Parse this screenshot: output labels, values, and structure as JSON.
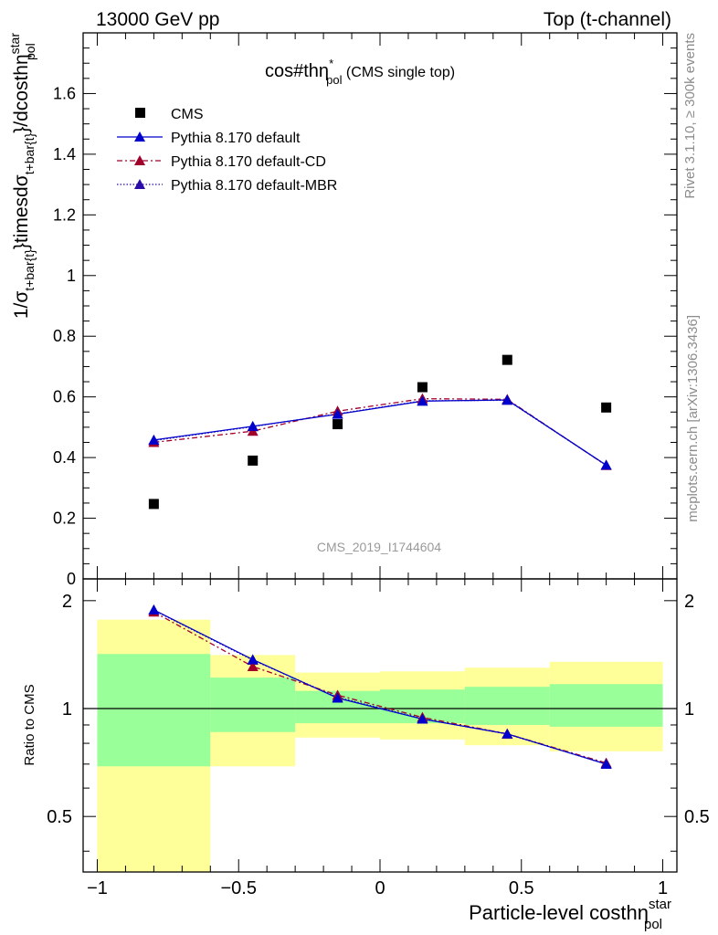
{
  "header": {
    "left": "13000 GeV pp",
    "right": "Top (t-channel)"
  },
  "side_text": {
    "rivet": "Rivet 3.1.10, ≥ 300k events",
    "mcplots": "mcplots.cern.ch [arXiv:1306.3436]"
  },
  "watermark": "CMS_2019_I1744604",
  "colors": {
    "data": "#000000",
    "default": "#0000cc",
    "cd": "#a0002a",
    "mbr": "#2a0aa8",
    "band_inner": "#99ff99",
    "band_outer": "#ffff99"
  },
  "chart_data": [
    {
      "type": "scatter",
      "panel": "main",
      "title": "cos#thη*pol (CMS single top)",
      "title_parts": {
        "main": "cos#thη",
        "sup": "*",
        "sub": "pol",
        "suffix": " (CMS single top)"
      },
      "ylabel": "1/σt+bar{t}}timesdσt+bar{t}}/dcosthηstarpol",
      "ylabel_parts": {
        "a": "1/σ",
        "a_sub": "t+bar{t}",
        "b": "}timesdσ",
        "b_sub": "t+bar{t}",
        "c": "}/dcosthη",
        "c_sup": "star",
        "c_sub": "pol"
      },
      "xlim": [
        -1.05,
        1.05
      ],
      "ylim": [
        0,
        1.8
      ],
      "yticks": [
        "0",
        "0.2",
        "0.4",
        "0.6",
        "0.8",
        "1",
        "1.2",
        "1.4",
        "1.6"
      ],
      "legend_position": "top-left",
      "series": [
        {
          "name": "CMS",
          "style": "data",
          "x": [
            -0.8,
            -0.45,
            -0.15,
            0.15,
            0.45,
            0.8
          ],
          "y": [
            0.247,
            0.39,
            0.51,
            0.632,
            0.722,
            0.565
          ]
        },
        {
          "name": "Pythia 8.170 default",
          "style": "default",
          "x": [
            -0.8,
            -0.45,
            -0.15,
            0.15,
            0.45,
            0.8
          ],
          "y": [
            0.458,
            0.503,
            0.543,
            0.586,
            0.59,
            0.375
          ]
        },
        {
          "name": "Pythia 8.170 default-CD",
          "style": "cd",
          "x": [
            -0.8,
            -0.45,
            -0.15,
            0.15,
            0.45,
            0.8
          ],
          "y": [
            0.45,
            0.487,
            0.553,
            0.594,
            0.592,
            0.374
          ]
        },
        {
          "name": "Pythia 8.170 default-MBR",
          "style": "mbr",
          "x": [
            -0.8,
            -0.45,
            -0.15,
            0.15,
            0.45,
            0.8
          ],
          "y": [
            0.456,
            0.502,
            0.544,
            0.587,
            0.589,
            0.375
          ]
        }
      ]
    },
    {
      "type": "line",
      "panel": "ratio",
      "ylabel": "Ratio to CMS",
      "xlabel": "Particle-level costhηstarpol",
      "xlabel_parts": {
        "main": "Particle-level costhη",
        "sup": "star",
        "sub": "pol"
      },
      "xlim": [
        -1.05,
        1.05
      ],
      "ylim": [
        0.35,
        2.3
      ],
      "log_y": true,
      "xticks": [
        "−1",
        "−0.5",
        "0",
        "0.5",
        "1"
      ],
      "yticks": [
        "0.5",
        "1",
        "2"
      ],
      "bands": {
        "bins": [
          [
            -1.0,
            -0.6
          ],
          [
            -0.6,
            -0.3
          ],
          [
            -0.3,
            0.0
          ],
          [
            0.0,
            0.3
          ],
          [
            0.3,
            0.6
          ],
          [
            0.6,
            1.0
          ]
        ],
        "inner": [
          [
            0.69,
            1.42
          ],
          [
            0.86,
            1.22
          ],
          [
            0.91,
            1.12
          ],
          [
            0.91,
            1.13
          ],
          [
            0.9,
            1.15
          ],
          [
            0.89,
            1.17
          ]
        ],
        "outer": [
          [
            0.35,
            1.77
          ],
          [
            0.69,
            1.41
          ],
          [
            0.83,
            1.26
          ],
          [
            0.82,
            1.27
          ],
          [
            0.79,
            1.3
          ],
          [
            0.76,
            1.35
          ]
        ]
      },
      "series": [
        {
          "name": "Pythia 8.170 default",
          "style": "default",
          "x": [
            -0.8,
            -0.45,
            -0.15,
            0.15,
            0.45,
            0.8
          ],
          "y": [
            1.885,
            1.37,
            1.07,
            0.935,
            0.85,
            0.7
          ]
        },
        {
          "name": "Pythia 8.170 default-CD",
          "style": "cd",
          "x": [
            -0.8,
            -0.45,
            -0.15,
            0.15,
            0.45,
            0.8
          ],
          "y": [
            1.86,
            1.31,
            1.09,
            0.945,
            0.85,
            0.705
          ]
        },
        {
          "name": "Pythia 8.170 default-MBR",
          "style": "mbr",
          "x": [
            -0.8,
            -0.45,
            -0.15,
            0.15,
            0.45,
            0.8
          ],
          "y": [
            1.88,
            1.365,
            1.075,
            0.937,
            0.849,
            0.7
          ]
        }
      ]
    }
  ]
}
